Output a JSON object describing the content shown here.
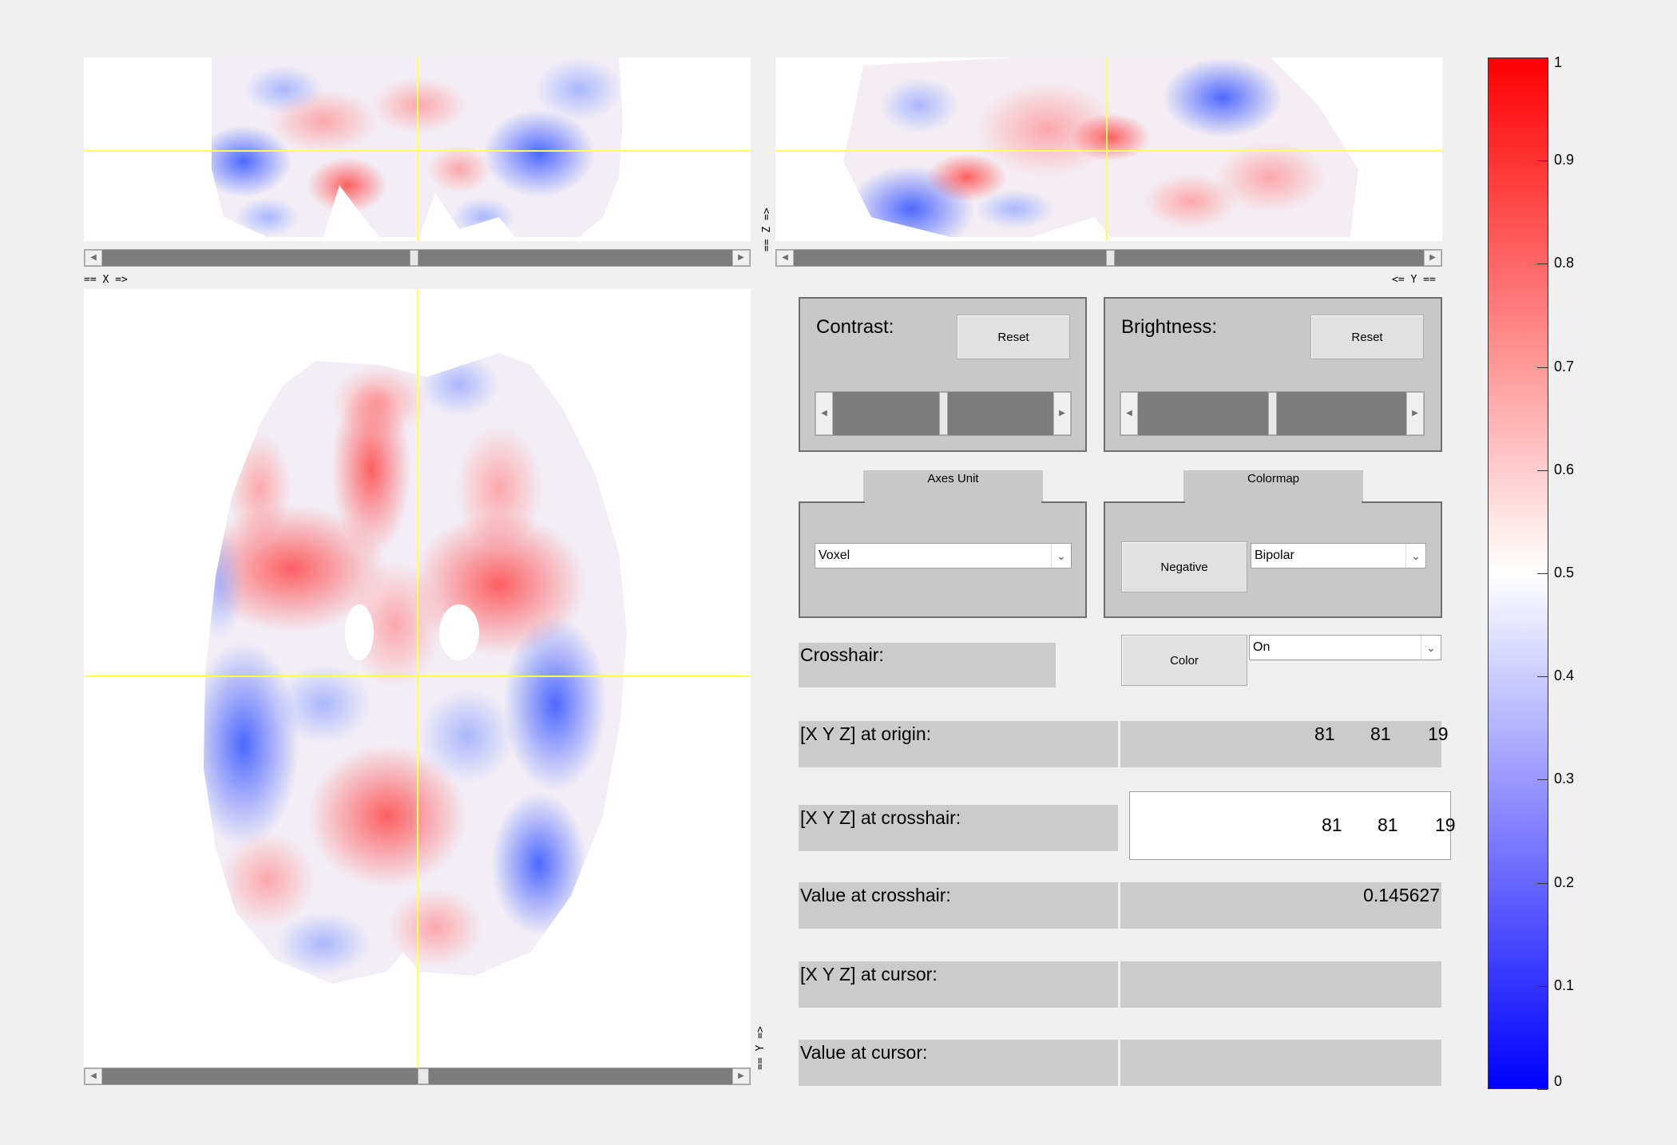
{
  "views": {
    "top_left_axis_label": "== X =>",
    "top_right_axis_label": "<= Y ==",
    "z_axis_label": "== Z =>",
    "main_y_axis_label": "== Y =>"
  },
  "contrast": {
    "label": "Contrast:",
    "reset_label": "Reset",
    "slider_level": 0.5
  },
  "brightness": {
    "label": "Brightness:",
    "reset_label": "Reset",
    "slider_level": 0.5
  },
  "axes_unit": {
    "tab_label": "Axes Unit",
    "selected": "Voxel"
  },
  "colormap": {
    "tab_label": "Colormap",
    "negative_label": "Negative",
    "selected": "Bipolar"
  },
  "crosshair": {
    "label": "Crosshair:",
    "color_label": "Color",
    "selected": "On"
  },
  "origin": {
    "label": "[X Y Z] at origin:",
    "x": "81",
    "y": "81",
    "z": "19"
  },
  "crosshair_pos": {
    "label": "[X Y Z] at crosshair:",
    "x": "81",
    "y": "81",
    "z": "19"
  },
  "value_crosshair": {
    "label": "Value at crosshair:",
    "value": "0.145627"
  },
  "cursor": {
    "label": "[X Y Z] at cursor:",
    "value": ""
  },
  "value_cursor": {
    "label": "Value at cursor:",
    "value": ""
  },
  "colorbar": {
    "ticks": [
      "0",
      "0.1",
      "0.2",
      "0.3",
      "0.4",
      "0.5",
      "0.6",
      "0.7",
      "0.8",
      "0.9",
      "1"
    ],
    "colors": {
      "low": "#0000ff",
      "mid": "#ffffff",
      "high": "#ff0000"
    }
  }
}
